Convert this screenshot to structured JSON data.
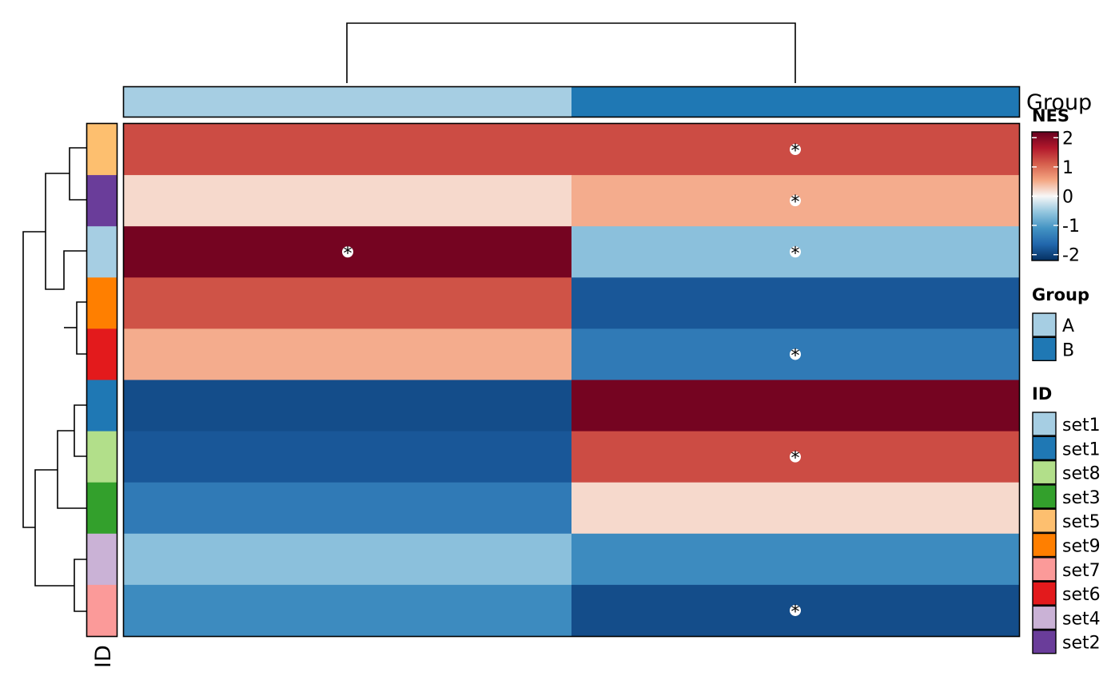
{
  "chart_data": {
    "type": "heatmap",
    "columns": [
      "A",
      "B"
    ],
    "column_annotation": {
      "label": "Group",
      "values": [
        "A",
        "B"
      ]
    },
    "row_annotation": {
      "label": "ID"
    },
    "rows": [
      {
        "id": "set5",
        "values": [
          1.25,
          1.25
        ],
        "sig": [
          false,
          true
        ]
      },
      {
        "id": "set2",
        "values": [
          0.2,
          0.5
        ],
        "sig": [
          false,
          true
        ]
      },
      {
        "id": "set1",
        "values": [
          2.1,
          -0.6
        ],
        "sig": [
          true,
          true
        ]
      },
      {
        "id": "set9",
        "values": [
          1.2,
          -1.8
        ],
        "sig": [
          false,
          false
        ]
      },
      {
        "id": "set6",
        "values": [
          0.5,
          -1.4
        ],
        "sig": [
          false,
          true
        ]
      },
      {
        "id": "set1",
        "values": [
          -1.9,
          2.1
        ],
        "sig": [
          false,
          false
        ]
      },
      {
        "id": "set8",
        "values": [
          -1.8,
          1.25
        ],
        "sig": [
          false,
          true
        ]
      },
      {
        "id": "set3",
        "values": [
          -1.4,
          0.2
        ],
        "sig": [
          false,
          false
        ]
      },
      {
        "id": "set4",
        "values": [
          -0.6,
          -1.2
        ],
        "sig": [
          false,
          false
        ]
      },
      {
        "id": "set7",
        "values": [
          -1.2,
          -1.9
        ],
        "sig": [
          false,
          true
        ]
      }
    ],
    "sig_marker": "*",
    "color_scale": {
      "title": "NES",
      "ticks": [
        "2",
        "1",
        "0",
        "-1",
        "-2"
      ],
      "range": [
        -2.2,
        2.2
      ],
      "stops": [
        "#053061",
        "#2166ac",
        "#4393c3",
        "#92c5de",
        "#f7f7f7",
        "#f4a582",
        "#d6604d",
        "#b2182b",
        "#67001f"
      ]
    },
    "legends": {
      "group": {
        "title": "Group",
        "items": [
          {
            "label": "A",
            "color": "#a6cee3"
          },
          {
            "label": "B",
            "color": "#1f78b4"
          }
        ]
      },
      "id": {
        "title": "ID",
        "items": [
          {
            "label": "set1",
            "color": "#a6cee3"
          },
          {
            "label": "set1",
            "color": "#1f78b4"
          },
          {
            "label": "set8",
            "color": "#b2df8a"
          },
          {
            "label": "set3",
            "color": "#33a02c"
          },
          {
            "label": "set5",
            "color": "#fdbf6f"
          },
          {
            "label": "set9",
            "color": "#ff7f00"
          },
          {
            "label": "set7",
            "color": "#fb9a99"
          },
          {
            "label": "set6",
            "color": "#e31a1c"
          },
          {
            "label": "set4",
            "color": "#cab2d6"
          },
          {
            "label": "set2",
            "color": "#6a3d9a"
          }
        ]
      }
    },
    "row_colors": [
      "#fdbf6f",
      "#6a3d9a",
      "#a6cee3",
      "#ff7f00",
      "#e31a1c",
      "#1f78b4",
      "#b2df8a",
      "#33a02c",
      "#cab2d6",
      "#fb9a99"
    ]
  }
}
